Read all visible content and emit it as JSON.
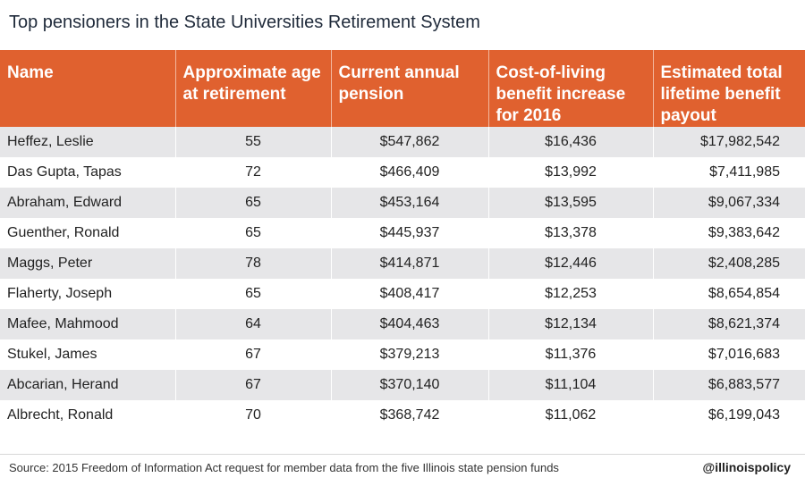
{
  "title": "Top pensioners in the State Universities Retirement System",
  "header_color": "#e0612f",
  "chart_data": {
    "type": "table",
    "title": "Top pensioners in the State Universities Retirement System",
    "columns": [
      "Name",
      "Approximate age at retirement",
      "Current annual pension",
      "Cost-of-living benefit increase for 2016",
      "Estimated total lifetime benefit payout"
    ],
    "rows": [
      [
        "Heffez, Leslie",
        "55",
        "$547,862",
        "$16,436",
        "$17,982,542"
      ],
      [
        "Das Gupta, Tapas",
        "72",
        "$466,409",
        "$13,992",
        "$7,411,985"
      ],
      [
        "Abraham, Edward",
        "65",
        "$453,164",
        "$13,595",
        "$9,067,334"
      ],
      [
        "Guenther, Ronald",
        "65",
        "$445,937",
        "$13,378",
        "$9,383,642"
      ],
      [
        "Maggs, Peter",
        "78",
        "$414,871",
        "$12,446",
        "$2,408,285"
      ],
      [
        "Flaherty, Joseph",
        "65",
        "$408,417",
        "$12,253",
        "$8,654,854"
      ],
      [
        "Mafee, Mahmood",
        "64",
        "$404,463",
        "$12,134",
        "$8,621,374"
      ],
      [
        "Stukel, James",
        "67",
        "$379,213",
        "$11,376",
        "$7,016,683"
      ],
      [
        "Abcarian, Herand",
        "67",
        "$370,140",
        "$11,104",
        "$6,883,577"
      ],
      [
        "Albrecht, Ronald",
        "70",
        "$368,742",
        "$11,062",
        "$6,199,043"
      ]
    ]
  },
  "footer": {
    "source": "Source: 2015 Freedom of Information Act request for member data from the five Illinois state pension funds",
    "handle": "@illinoispolicy"
  }
}
